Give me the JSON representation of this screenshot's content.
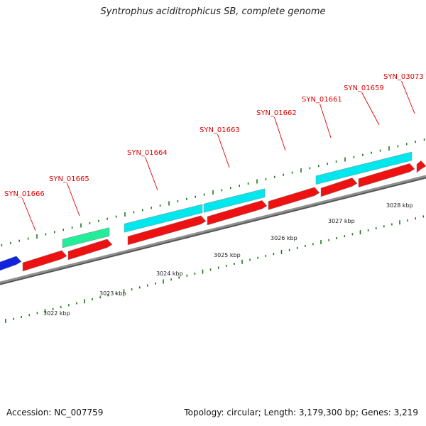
{
  "title": "Syntrophus aciditrophicus SB, complete genome",
  "accession_text": "Accession: NC_007759",
  "summary_text": "Topology: circular; Length: 3,179,300 bp; Genes: 3,219",
  "colors": {
    "backbone": "#909090",
    "backbone_shadow": "#555555",
    "tick": "#1a7a1a",
    "label": "#e00000",
    "leader": "#e00000",
    "forward_gene": "#ee1111",
    "cyan_feature": "#00e8ee",
    "teal_feature": "#22ee99",
    "blue_feature": "#1122dd"
  },
  "gene_labels": [
    "SYN_01666",
    "SYN_01665",
    "SYN_01664",
    "SYN_01663",
    "SYN_01662",
    "SYN_01661",
    "SYN_01659",
    "SYN_03073"
  ],
  "kbp_labels": [
    "3022 kbp",
    "3023 kbp",
    "3024 kbp",
    "3025 kbp",
    "3026 kbp",
    "3027 kbp",
    "3028 kbp"
  ]
}
